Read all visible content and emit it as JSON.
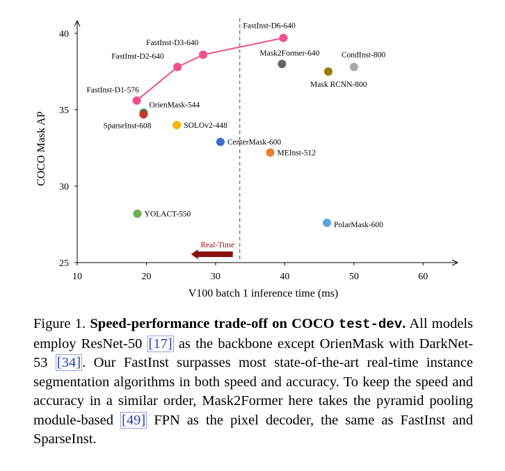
{
  "chart_data": {
    "type": "scatter",
    "xlabel": "V100 batch 1 inference time (ms)",
    "ylabel": "COCO Mask AP",
    "xlim": [
      10,
      65
    ],
    "ylim": [
      25,
      41
    ],
    "x_ticks": [
      10,
      20,
      30,
      40,
      50,
      60
    ],
    "y_ticks": [
      25,
      30,
      35,
      40
    ],
    "grid": false,
    "realtime_threshold_x": 33.5,
    "realtime_label": "Real-Time",
    "series": [
      {
        "name": "FastInst",
        "connected": true,
        "color": "#f0508c",
        "points": [
          {
            "label": "FastInst-D1-576",
            "x": 18.6,
            "y": 35.6
          },
          {
            "label": "FastInst-D2-640",
            "x": 24.5,
            "y": 37.8
          },
          {
            "label": "FastInst-D3-640",
            "x": 28.2,
            "y": 38.6
          },
          {
            "label": "FastInst-D6-640",
            "x": 39.8,
            "y": 39.7
          }
        ]
      }
    ],
    "points": [
      {
        "label": "OrienMask-544",
        "x": 19.6,
        "y": 34.8,
        "color": "#2e8b57"
      },
      {
        "label": "SparseInst-608",
        "x": 19.6,
        "y": 34.7,
        "color": "#c0392b"
      },
      {
        "label": "SOLOv2-448",
        "x": 24.4,
        "y": 34.0,
        "color": "#f5b700"
      },
      {
        "label": "CenterMask-600",
        "x": 30.7,
        "y": 32.9,
        "color": "#3a6fcf"
      },
      {
        "label": "MEInst-512",
        "x": 37.9,
        "y": 32.2,
        "color": "#ef7d34"
      },
      {
        "label": "Mask2Former-640",
        "x": 39.6,
        "y": 38.0,
        "color": "#666666"
      },
      {
        "label": "Mask RCNN-800",
        "x": 46.3,
        "y": 37.5,
        "color": "#9a7a00"
      },
      {
        "label": "CondInst-800",
        "x": 50.0,
        "y": 37.8,
        "color": "#a8a8a8"
      },
      {
        "label": "YOLACT-550",
        "x": 18.7,
        "y": 28.2,
        "color": "#6ab04c"
      },
      {
        "label": "PolarMask-600",
        "x": 46.1,
        "y": 27.6,
        "color": "#5aa3dc"
      }
    ]
  },
  "caption": {
    "label": "Figure 1.",
    "title_part1": "Speed-performance trade-off on COCO",
    "title_mono": "test-dev",
    "title_end": ".",
    "body_1": "All models employ ResNet-50",
    "cite_1": "[17]",
    "body_2": "as the backbone except Orien­Mask with DarkNet-53",
    "cite_2": "[34]",
    "body_3": ". Our FastInst surpasses most state-of-the-art real-time instance segmentation algorithms in both speed and accuracy. To keep the speed and accuracy in a similar order, Mask2Former here takes the pyramid pooling module-based",
    "cite_3": "[49]",
    "body_4": "FPN as the pixel decoder, the same as FastInst and SparseInst."
  }
}
